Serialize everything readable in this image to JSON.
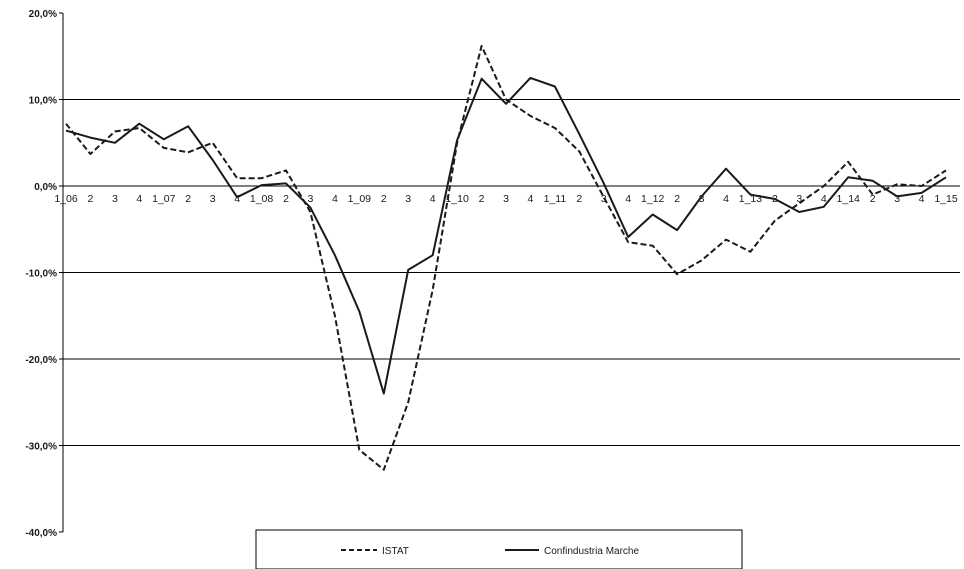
{
  "chart_data": {
    "type": "line",
    "title": "",
    "xlabel": "",
    "ylabel": "",
    "ylim": [
      -40,
      20
    ],
    "yticks": [
      20,
      10,
      0,
      -10,
      -20,
      -30,
      -40
    ],
    "ytick_labels": [
      "20,0%",
      "10,0%",
      "0,0%",
      "-10,0%",
      "-20,0%",
      "-30,0%",
      "-40,0%"
    ],
    "gridlines_y": [
      10,
      -10,
      -20,
      -30
    ],
    "legend_position": "bottom",
    "categories": [
      "1_06",
      "2",
      "3",
      "4",
      "1_07",
      "2",
      "3",
      "4",
      "1_08",
      "2",
      "3",
      "4",
      "1_09",
      "2",
      "3",
      "4",
      "1_10",
      "2",
      "3",
      "4",
      "1_11",
      "2",
      "3",
      "4",
      "1_12",
      "2",
      "3",
      "4",
      "1_13",
      "2",
      "3",
      "4",
      "1_14",
      "2",
      "3",
      "4",
      "1_15"
    ],
    "series": [
      {
        "name": "ISTAT",
        "style": "dashed",
        "color": "#1a1a1a",
        "values": [
          7.2,
          3.7,
          6.3,
          6.7,
          4.4,
          3.9,
          5.0,
          0.9,
          0.9,
          1.8,
          -3.0,
          -15.0,
          -30.5,
          -32.8,
          -25.0,
          -12.0,
          5.0,
          16.2,
          10.0,
          8.1,
          6.7,
          4.0,
          -1.3,
          -6.5,
          -6.9,
          -10.2,
          -8.6,
          -6.2,
          -7.6,
          -4.0,
          -2.0,
          0.0,
          2.8,
          -1.0,
          0.2,
          0.0,
          1.8
        ]
      },
      {
        "name": "Confindustria Marche",
        "style": "solid",
        "color": "#1a1a1a",
        "values": [
          6.4,
          5.6,
          5.0,
          7.2,
          5.4,
          6.9,
          3.0,
          -1.3,
          0.1,
          0.3,
          -2.5,
          -8.0,
          -14.5,
          -24.0,
          -9.7,
          -8.0,
          5.3,
          12.4,
          9.5,
          12.5,
          11.5,
          6.0,
          0.3,
          -5.9,
          -3.3,
          -5.1,
          -1.2,
          2.0,
          -1.0,
          -1.5,
          -3.0,
          -2.4,
          1.0,
          0.6,
          -1.2,
          -0.8,
          1.0
        ]
      }
    ]
  }
}
